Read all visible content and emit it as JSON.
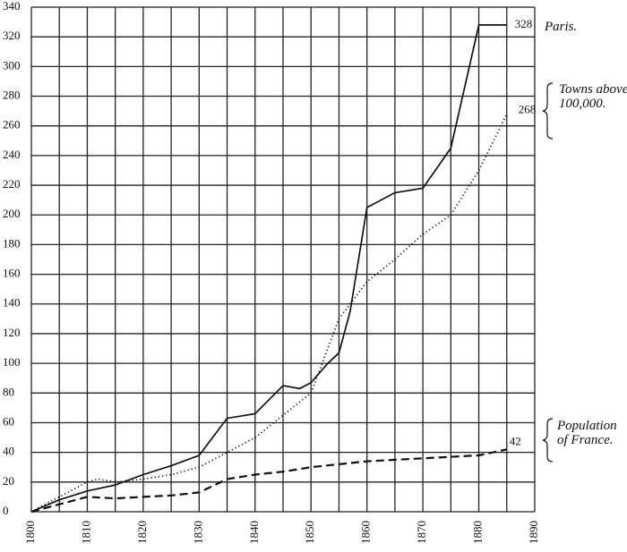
{
  "chart_data": {
    "type": "line",
    "xlim": [
      1800,
      1890
    ],
    "xticks": [
      1800,
      1810,
      1820,
      1830,
      1840,
      1850,
      1860,
      1870,
      1880,
      1890
    ],
    "ylim": [
      0,
      340
    ],
    "yticks": [
      0,
      20,
      40,
      60,
      80,
      100,
      120,
      140,
      160,
      180,
      200,
      220,
      240,
      260,
      280,
      300,
      320,
      340
    ],
    "grid": true,
    "series": [
      {
        "name": "Paris.",
        "color": "#111111",
        "style": "solid",
        "x": [
          1800,
          1805,
          1810,
          1815,
          1820,
          1825,
          1830,
          1835,
          1840,
          1845,
          1848,
          1850,
          1853,
          1855,
          1857,
          1860,
          1865,
          1870,
          1875,
          1880,
          1885
        ],
        "values": [
          0,
          8,
          14,
          18,
          25,
          31,
          38,
          63,
          66,
          85,
          83,
          87,
          100,
          107,
          135,
          205,
          215,
          218,
          245,
          328,
          328
        ]
      },
      {
        "name": "Towns above 100,000.",
        "color": "#111111",
        "style": "dotted",
        "x": [
          1800,
          1805,
          1810,
          1812,
          1815,
          1820,
          1825,
          1830,
          1835,
          1840,
          1845,
          1850,
          1855,
          1860,
          1865,
          1870,
          1875,
          1880,
          1885
        ],
        "values": [
          0,
          10,
          20,
          22,
          20,
          22,
          25,
          30,
          40,
          50,
          65,
          80,
          130,
          155,
          170,
          187,
          200,
          230,
          268
        ]
      },
      {
        "name": "Population of France.",
        "color": "#111111",
        "style": "dashed",
        "x": [
          1800,
          1805,
          1810,
          1815,
          1820,
          1825,
          1830,
          1835,
          1840,
          1845,
          1850,
          1855,
          1860,
          1865,
          1870,
          1875,
          1880,
          1885
        ],
        "values": [
          0,
          5,
          10,
          9,
          10,
          11,
          13,
          22,
          25,
          27,
          30,
          32,
          34,
          35,
          36,
          37,
          38,
          42
        ]
      }
    ]
  }
}
